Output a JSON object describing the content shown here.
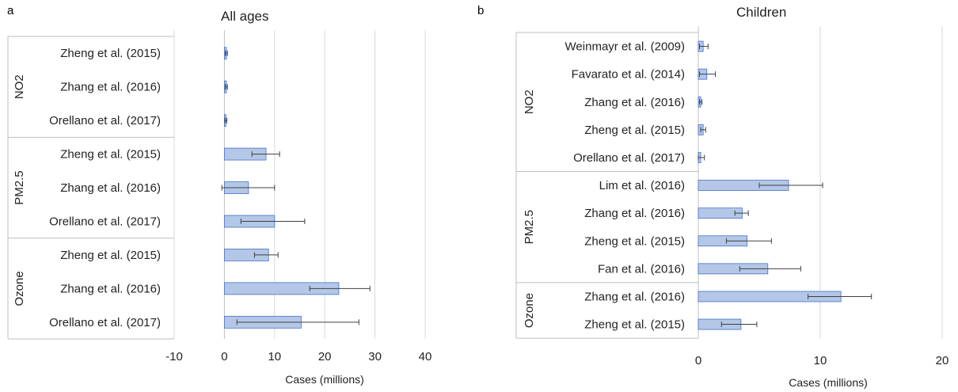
{
  "panel_labels": {
    "a": "a",
    "b": "b"
  },
  "style": {
    "bar_fill": "#b4c7e7",
    "bar_stroke": "#4472c4",
    "grid": "#d9d9d9",
    "error_bar": "#404040",
    "divider": "#bfbfbf",
    "text": "#222222"
  },
  "chart_data": [
    {
      "type": "bar",
      "orientation": "horizontal",
      "title": "All ages",
      "xlabel": "Cases (millions)",
      "ylabel": "",
      "xlim": [
        -10,
        40
      ],
      "xticks": [
        "-10",
        "0",
        "10",
        "20",
        "30",
        "40"
      ],
      "xtick_values": [
        -10,
        0,
        10,
        20,
        30,
        40
      ],
      "grid": "vertical",
      "groups": [
        {
          "name": "NO2",
          "rows": [
            {
              "label": "Zheng et al. (2015)",
              "value": 0.4,
              "lo": 0.2,
              "hi": 0.6
            },
            {
              "label": "Zhang et al. (2016)",
              "value": 0.4,
              "lo": 0.2,
              "hi": 0.6
            },
            {
              "label": "Orellano et al. (2017)",
              "value": 0.3,
              "lo": 0.1,
              "hi": 0.5
            }
          ]
        },
        {
          "name": "PM2.5",
          "rows": [
            {
              "label": "Zheng et al. (2015)",
              "value": 8.3,
              "lo": 5.5,
              "hi": 11.0
            },
            {
              "label": "Zhang et al. (2016)",
              "value": 4.8,
              "lo": -0.5,
              "hi": 10.0
            },
            {
              "label": "Orellano et al. (2017)",
              "value": 10.0,
              "lo": 3.3,
              "hi": 16.0
            }
          ]
        },
        {
          "name": "Ozone",
          "rows": [
            {
              "label": "Zheng et al. (2015)",
              "value": 8.8,
              "lo": 6.0,
              "hi": 10.7
            },
            {
              "label": "Zhang et al. (2016)",
              "value": 22.8,
              "lo": 17.0,
              "hi": 29.0
            },
            {
              "label": "Orellano et al. (2017)",
              "value": 15.3,
              "lo": 2.5,
              "hi": 26.8
            }
          ]
        }
      ]
    },
    {
      "type": "bar",
      "orientation": "horizontal",
      "title": "Children",
      "xlabel": "Cases (millions)",
      "ylabel": "",
      "xlim": [
        0,
        20
      ],
      "xticks": [
        "0",
        "10",
        "20"
      ],
      "xtick_values": [
        0,
        10,
        20
      ],
      "grid": "vertical",
      "groups": [
        {
          "name": "NO2",
          "rows": [
            {
              "label": "Weinmayr et al. (2009)",
              "value": 0.4,
              "lo": 0.1,
              "hi": 0.8
            },
            {
              "label": "Favarato et al. (2014)",
              "value": 0.7,
              "lo": 0.1,
              "hi": 1.4
            },
            {
              "label": "Zhang et al. (2016)",
              "value": 0.2,
              "lo": 0.1,
              "hi": 0.3
            },
            {
              "label": "Zheng et al. (2015)",
              "value": 0.4,
              "lo": 0.2,
              "hi": 0.6
            },
            {
              "label": "Orellano et al. (2017)",
              "value": 0.2,
              "lo": 0.0,
              "hi": 0.5
            }
          ]
        },
        {
          "name": "PM2.5",
          "rows": [
            {
              "label": "Lim et al. (2016)",
              "value": 7.4,
              "lo": 5.0,
              "hi": 10.2
            },
            {
              "label": "Zhang et al. (2016)",
              "value": 3.6,
              "lo": 3.0,
              "hi": 4.1
            },
            {
              "label": "Zheng et al. (2015)",
              "value": 4.0,
              "lo": 2.3,
              "hi": 6.0
            },
            {
              "label": "Fan et al. (2016)",
              "value": 5.7,
              "lo": 3.4,
              "hi": 8.4
            }
          ]
        },
        {
          "name": "Ozone",
          "rows": [
            {
              "label": "Zhang et al. (2016)",
              "value": 11.7,
              "lo": 9.0,
              "hi": 14.2
            },
            {
              "label": "Zheng et al. (2015)",
              "value": 3.5,
              "lo": 1.9,
              "hi": 4.8
            }
          ]
        }
      ]
    }
  ]
}
